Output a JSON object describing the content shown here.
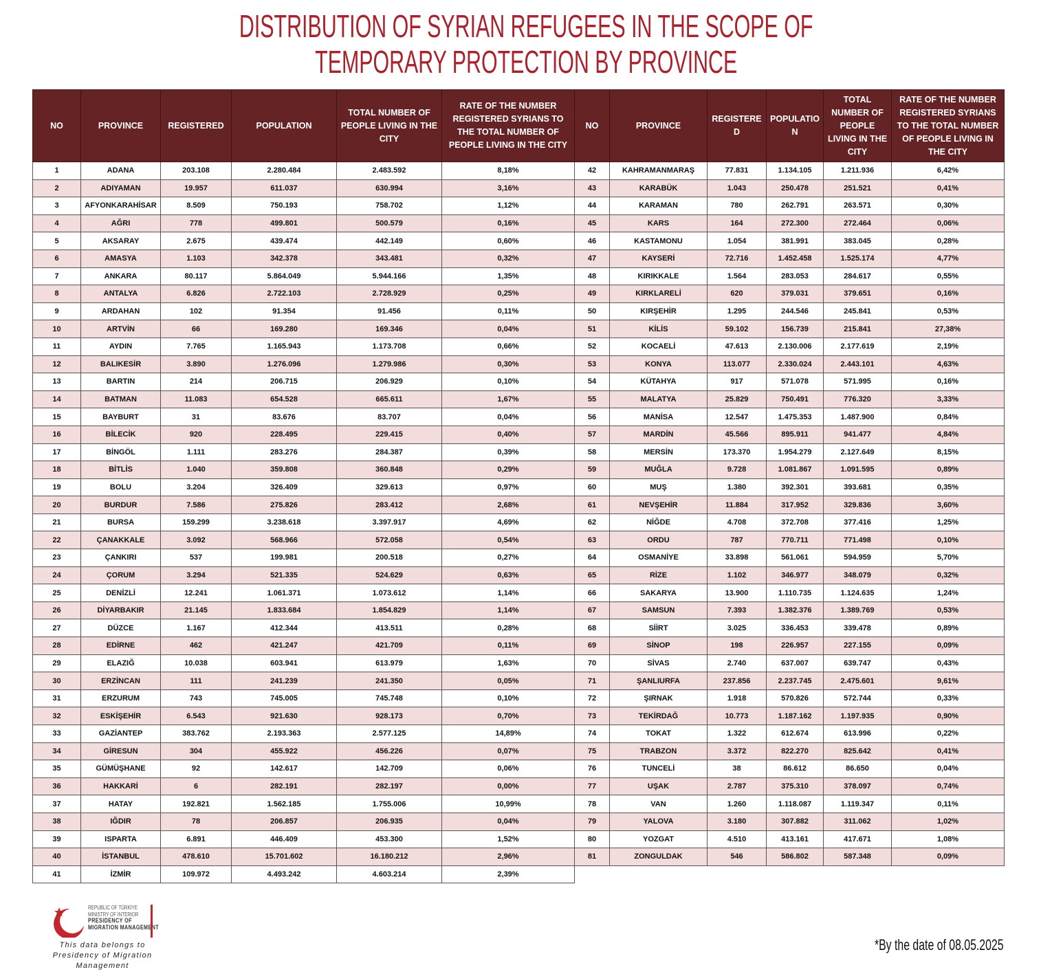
{
  "title": [
    "DISTRIBUTION OF SYRIAN REFUGEES IN THE SCOPE OF",
    "TEMPORARY PROTECTION BY PROVINCE"
  ],
  "table": {
    "headers": [
      "NO",
      "PROVINCE",
      "REGISTERED",
      "POPULATION",
      "TOTAL NUMBER OF PEOPLE LIVING IN THE CITY",
      "RATE OF THE NUMBER REGISTERED SYRIANS TO THE TOTAL NUMBER OF PEOPLE LIVING IN THE CITY"
    ],
    "rows": [
      [
        "1",
        "ADANA",
        "203.108",
        "2.280.484",
        "2.483.592",
        "8,18%"
      ],
      [
        "2",
        "ADIYAMAN",
        "19.957",
        "611.037",
        "630.994",
        "3,16%"
      ],
      [
        "3",
        "AFYONKARAHİSAR",
        "8.509",
        "750.193",
        "758.702",
        "1,12%"
      ],
      [
        "4",
        "AĞRI",
        "778",
        "499.801",
        "500.579",
        "0,16%"
      ],
      [
        "5",
        "AKSARAY",
        "2.675",
        "439.474",
        "442.149",
        "0,60%"
      ],
      [
        "6",
        "AMASYA",
        "1.103",
        "342.378",
        "343.481",
        "0,32%"
      ],
      [
        "7",
        "ANKARA",
        "80.117",
        "5.864.049",
        "5.944.166",
        "1,35%"
      ],
      [
        "8",
        "ANTALYA",
        "6.826",
        "2.722.103",
        "2.728.929",
        "0,25%"
      ],
      [
        "9",
        "ARDAHAN",
        "102",
        "91.354",
        "91.456",
        "0,11%"
      ],
      [
        "10",
        "ARTVİN",
        "66",
        "169.280",
        "169.346",
        "0,04%"
      ],
      [
        "11",
        "AYDIN",
        "7.765",
        "1.165.943",
        "1.173.708",
        "0,66%"
      ],
      [
        "12",
        "BALIKESİR",
        "3.890",
        "1.276.096",
        "1.279.986",
        "0,30%"
      ],
      [
        "13",
        "BARTIN",
        "214",
        "206.715",
        "206.929",
        "0,10%"
      ],
      [
        "14",
        "BATMAN",
        "11.083",
        "654.528",
        "665.611",
        "1,67%"
      ],
      [
        "15",
        "BAYBURT",
        "31",
        "83.676",
        "83.707",
        "0,04%"
      ],
      [
        "16",
        "BİLECİK",
        "920",
        "228.495",
        "229.415",
        "0,40%"
      ],
      [
        "17",
        "BİNGÖL",
        "1.111",
        "283.276",
        "284.387",
        "0,39%"
      ],
      [
        "18",
        "BİTLİS",
        "1.040",
        "359.808",
        "360.848",
        "0,29%"
      ],
      [
        "19",
        "BOLU",
        "3.204",
        "326.409",
        "329.613",
        "0,97%"
      ],
      [
        "20",
        "BURDUR",
        "7.586",
        "275.826",
        "283.412",
        "2,68%"
      ],
      [
        "21",
        "BURSA",
        "159.299",
        "3.238.618",
        "3.397.917",
        "4,69%"
      ],
      [
        "22",
        "ÇANAKKALE",
        "3.092",
        "568.966",
        "572.058",
        "0,54%"
      ],
      [
        "23",
        "ÇANKIRI",
        "537",
        "199.981",
        "200.518",
        "0,27%"
      ],
      [
        "24",
        "ÇORUM",
        "3.294",
        "521.335",
        "524.629",
        "0,63%"
      ],
      [
        "25",
        "DENİZLİ",
        "12.241",
        "1.061.371",
        "1.073.612",
        "1,14%"
      ],
      [
        "26",
        "DİYARBAKIR",
        "21.145",
        "1.833.684",
        "1.854.829",
        "1,14%"
      ],
      [
        "27",
        "DÜZCE",
        "1.167",
        "412.344",
        "413.511",
        "0,28%"
      ],
      [
        "28",
        "EDİRNE",
        "462",
        "421.247",
        "421.709",
        "0,11%"
      ],
      [
        "29",
        "ELAZIĞ",
        "10.038",
        "603.941",
        "613.979",
        "1,63%"
      ],
      [
        "30",
        "ERZİNCAN",
        "111",
        "241.239",
        "241.350",
        "0,05%"
      ],
      [
        "31",
        "ERZURUM",
        "743",
        "745.005",
        "745.748",
        "0,10%"
      ],
      [
        "32",
        "ESKİŞEHİR",
        "6.543",
        "921.630",
        "928.173",
        "0,70%"
      ],
      [
        "33",
        "GAZİANTEP",
        "383.762",
        "2.193.363",
        "2.577.125",
        "14,89%"
      ],
      [
        "34",
        "GİRESUN",
        "304",
        "455.922",
        "456.226",
        "0,07%"
      ],
      [
        "35",
        "GÜMÜŞHANE",
        "92",
        "142.617",
        "142.709",
        "0,06%"
      ],
      [
        "36",
        "HAKKARİ",
        "6",
        "282.191",
        "282.197",
        "0,00%"
      ],
      [
        "37",
        "HATAY",
        "192.821",
        "1.562.185",
        "1.755.006",
        "10,99%"
      ],
      [
        "38",
        "IĞDIR",
        "78",
        "206.857",
        "206.935",
        "0,04%"
      ],
      [
        "39",
        "ISPARTA",
        "6.891",
        "446.409",
        "453.300",
        "1,52%"
      ],
      [
        "40",
        "İSTANBUL",
        "478.610",
        "15.701.602",
        "16.180.212",
        "2,96%"
      ],
      [
        "41",
        "İZMİR",
        "109.972",
        "4.493.242",
        "4.603.214",
        "2,39%"
      ],
      [
        "42",
        "KAHRAMANMARAŞ",
        "77.831",
        "1.134.105",
        "1.211.936",
        "6,42%"
      ],
      [
        "43",
        "KARABÜK",
        "1.043",
        "250.478",
        "251.521",
        "0,41%"
      ],
      [
        "44",
        "KARAMAN",
        "780",
        "262.791",
        "263.571",
        "0,30%"
      ],
      [
        "45",
        "KARS",
        "164",
        "272.300",
        "272.464",
        "0,06%"
      ],
      [
        "46",
        "KASTAMONU",
        "1.054",
        "381.991",
        "383.045",
        "0,28%"
      ],
      [
        "47",
        "KAYSERİ",
        "72.716",
        "1.452.458",
        "1.525.174",
        "4,77%"
      ],
      [
        "48",
        "KIRIKKALE",
        "1.564",
        "283.053",
        "284.617",
        "0,55%"
      ],
      [
        "49",
        "KIRKLARELİ",
        "620",
        "379.031",
        "379.651",
        "0,16%"
      ],
      [
        "50",
        "KIRŞEHİR",
        "1.295",
        "244.546",
        "245.841",
        "0,53%"
      ],
      [
        "51",
        "KİLİS",
        "59.102",
        "156.739",
        "215.841",
        "27,38%"
      ],
      [
        "52",
        "KOCAELİ",
        "47.613",
        "2.130.006",
        "2.177.619",
        "2,19%"
      ],
      [
        "53",
        "KONYA",
        "113.077",
        "2.330.024",
        "2.443.101",
        "4,63%"
      ],
      [
        "54",
        "KÜTAHYA",
        "917",
        "571.078",
        "571.995",
        "0,16%"
      ],
      [
        "55",
        "MALATYA",
        "25.829",
        "750.491",
        "776.320",
        "3,33%"
      ],
      [
        "56",
        "MANİSA",
        "12.547",
        "1.475.353",
        "1.487.900",
        "0,84%"
      ],
      [
        "57",
        "MARDİN",
        "45.566",
        "895.911",
        "941.477",
        "4,84%"
      ],
      [
        "58",
        "MERSİN",
        "173.370",
        "1.954.279",
        "2.127.649",
        "8,15%"
      ],
      [
        "59",
        "MUĞLA",
        "9.728",
        "1.081.867",
        "1.091.595",
        "0,89%"
      ],
      [
        "60",
        "MUŞ",
        "1.380",
        "392.301",
        "393.681",
        "0,35%"
      ],
      [
        "61",
        "NEVŞEHİR",
        "11.884",
        "317.952",
        "329.836",
        "3,60%"
      ],
      [
        "62",
        "NİĞDE",
        "4.708",
        "372.708",
        "377.416",
        "1,25%"
      ],
      [
        "63",
        "ORDU",
        "787",
        "770.711",
        "771.498",
        "0,10%"
      ],
      [
        "64",
        "OSMANİYE",
        "33.898",
        "561.061",
        "594.959",
        "5,70%"
      ],
      [
        "65",
        "RİZE",
        "1.102",
        "346.977",
        "348.079",
        "0,32%"
      ],
      [
        "66",
        "SAKARYA",
        "13.900",
        "1.110.735",
        "1.124.635",
        "1,24%"
      ],
      [
        "67",
        "SAMSUN",
        "7.393",
        "1.382.376",
        "1.389.769",
        "0,53%"
      ],
      [
        "68",
        "SİİRT",
        "3.025",
        "336.453",
        "339.478",
        "0,89%"
      ],
      [
        "69",
        "SİNOP",
        "198",
        "226.957",
        "227.155",
        "0,09%"
      ],
      [
        "70",
        "SİVAS",
        "2.740",
        "637.007",
        "639.747",
        "0,43%"
      ],
      [
        "71",
        "ŞANLIURFA",
        "237.856",
        "2.237.745",
        "2.475.601",
        "9,61%"
      ],
      [
        "72",
        "ŞIRNAK",
        "1.918",
        "570.826",
        "572.744",
        "0,33%"
      ],
      [
        "73",
        "TEKİRDAĞ",
        "10.773",
        "1.187.162",
        "1.197.935",
        "0,90%"
      ],
      [
        "74",
        "TOKAT",
        "1.322",
        "612.674",
        "613.996",
        "0,22%"
      ],
      [
        "75",
        "TRABZON",
        "3.372",
        "822.270",
        "825.642",
        "0,41%"
      ],
      [
        "76",
        "TUNCELİ",
        "38",
        "86.612",
        "86.650",
        "0,04%"
      ],
      [
        "77",
        "UŞAK",
        "2.787",
        "375.310",
        "378.097",
        "0,74%"
      ],
      [
        "78",
        "VAN",
        "1.260",
        "1.118.087",
        "1.119.347",
        "0,11%"
      ],
      [
        "79",
        "YALOVA",
        "3.180",
        "307.882",
        "311.062",
        "1,02%"
      ],
      [
        "80",
        "YOZGAT",
        "4.510",
        "413.161",
        "417.671",
        "1,08%"
      ],
      [
        "81",
        "ZONGULDAK",
        "546",
        "586.802",
        "587.348",
        "0,09%"
      ]
    ]
  },
  "footer": {
    "logo": [
      "REPUBLIC OF TÜRKİYE",
      "MINISTRY OF INTERIOR",
      "PRESIDENCY OF",
      "MIGRATION MANAGEMENT"
    ],
    "credit": [
      "This data belongs to",
      "Presidency of Migration Management"
    ],
    "note": "*By the date of 08.05.2025"
  }
}
